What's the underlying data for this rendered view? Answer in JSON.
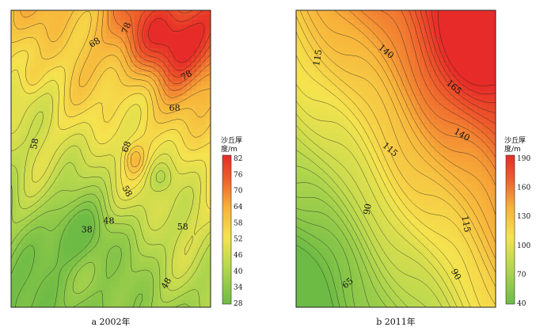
{
  "chart_data": [
    {
      "type": "heatmap",
      "subtype": "contour",
      "caption": "a 2002年",
      "colorbar": {
        "title_line1": "沙丘厚",
        "title_line2": "度/m",
        "ticks": [
          "82",
          "76",
          "70",
          "64",
          "58",
          "52",
          "46",
          "40",
          "34",
          "28"
        ],
        "range": [
          28,
          82
        ],
        "colors": [
          "#6dbb45",
          "#b7d84e",
          "#f5e34e",
          "#f7b23a",
          "#ee5a2b",
          "#e62b28"
        ]
      },
      "contour_labels": [
        "78",
        "68",
        "78",
        "68",
        "58",
        "68",
        "58",
        "48",
        "38",
        "58",
        "48"
      ],
      "peaks": [
        {
          "name": "high-northeast",
          "value": 84
        },
        {
          "name": "low-southwest",
          "value": 36
        }
      ]
    },
    {
      "type": "heatmap",
      "subtype": "contour",
      "caption": "b 2011年",
      "colorbar": {
        "title_line1": "沙丘厚",
        "title_line2": "度/m",
        "ticks": [
          "190",
          "160",
          "130",
          "100",
          "70",
          "40"
        ],
        "range": [
          40,
          190
        ],
        "colors": [
          "#6dbb45",
          "#b7d84e",
          "#f5e34e",
          "#f7b23a",
          "#ee5a2b",
          "#e62b28"
        ]
      },
      "contour_labels": [
        "115",
        "140",
        "165",
        "140",
        "115",
        "90",
        "115",
        "90",
        "65"
      ],
      "peaks": [
        {
          "name": "high-northeast",
          "value": 190
        },
        {
          "name": "low-southwest",
          "value": 55
        }
      ]
    }
  ]
}
